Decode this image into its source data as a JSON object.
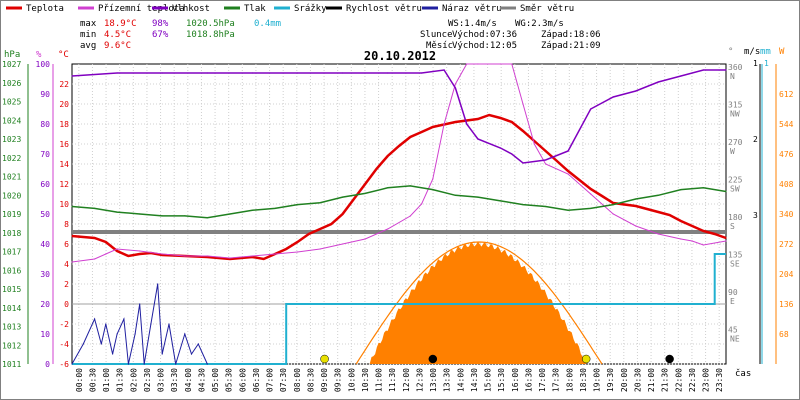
{
  "chart_data": {
    "type": "line",
    "title": "20.10.2012",
    "x_unit": "čas",
    "x_ticks": [
      "00:00",
      "00:30",
      "01:00",
      "01:30",
      "02:00",
      "02:30",
      "03:00",
      "03:30",
      "04:00",
      "04:30",
      "05:00",
      "05:30",
      "06:00",
      "06:30",
      "07:00",
      "07:30",
      "08:00",
      "08:30",
      "09:00",
      "09:30",
      "10:00",
      "10:30",
      "11:00",
      "11:30",
      "12:00",
      "12:30",
      "13:00",
      "13:30",
      "14:00",
      "14:30",
      "15:00",
      "15:30",
      "16:00",
      "16:30",
      "17:00",
      "17:30",
      "18:00",
      "18:30",
      "19:00",
      "19:30",
      "20:00",
      "20:30",
      "21:00",
      "21:30",
      "22:00",
      "22:30",
      "23:00",
      "23:30"
    ],
    "legend": [
      {
        "name": "Teplota",
        "color": "#e00000"
      },
      {
        "name": "Přízemní teplota",
        "color": "#d040d0"
      },
      {
        "name": "Vlhkost",
        "color": "#8000c0"
      },
      {
        "name": "Tlak",
        "color": "#208020"
      },
      {
        "name": "Srážky",
        "color": "#20b0d0"
      },
      {
        "name": "Rychlost větru",
        "color": "#000000"
      },
      {
        "name": "Náraz větru",
        "color": "#2020a0"
      },
      {
        "name": "Směr větru",
        "color": "#808080"
      }
    ],
    "stats": {
      "max": {
        "label": "max",
        "temp": "18.9°C",
        "hum": "98%",
        "press": "1020.5hPa",
        "rain": "0.4mm"
      },
      "min": {
        "label": "min",
        "temp": "4.5°C",
        "hum": "67%",
        "press": "1018.8hPa"
      },
      "avg": {
        "label": "avg",
        "temp": "9.6°C"
      }
    },
    "wind_info": {
      "ws": "WS:1.4m/s",
      "wg": "WG:2.3m/s"
    },
    "sun_info": {
      "label": "Slunce",
      "rise": "Východ:07:36",
      "set": "Západ:18:06"
    },
    "moon_info": {
      "label": "Měsíc",
      "rise": "Východ:12:05",
      "set": "Západ:21:09"
    },
    "axes": {
      "hpa": {
        "unit": "hPa",
        "range": [
          1011,
          1027
        ],
        "ticks": [
          "1027",
          "1026",
          "1025",
          "1024",
          "1023",
          "1022",
          "1021",
          "1020",
          "1019",
          "1018",
          "1017",
          "1016",
          "1015",
          "1014",
          "1013",
          "1012",
          "1011"
        ]
      },
      "pct": {
        "unit": "%",
        "range": [
          0,
          100
        ],
        "ticks": [
          "100",
          "90",
          "80",
          "70",
          "60",
          "50",
          "40",
          "30",
          "20",
          "10",
          "0"
        ]
      },
      "temp": {
        "unit": "°C",
        "range": [
          -6,
          24
        ],
        "ticks": [
          "22",
          "20",
          "18",
          "16",
          "14",
          "12",
          "10",
          "8",
          "6",
          "4",
          "2",
          "0",
          "-2",
          "-4",
          "-6"
        ]
      },
      "dir": {
        "unit": "°",
        "ticks": [
          {
            "deg": "360",
            "dir": "N"
          },
          {
            "deg": "315",
            "dir": "NW"
          },
          {
            "deg": "270",
            "dir": "W"
          },
          {
            "deg": "225",
            "dir": "SW"
          },
          {
            "deg": "180",
            "dir": "S"
          },
          {
            "deg": "135",
            "dir": "SE"
          },
          {
            "deg": "90",
            "dir": "E"
          },
          {
            "deg": "45",
            "dir": "NE"
          }
        ]
      },
      "ms": {
        "unit": "m/s",
        "ticks": [
          "3",
          "2",
          "1"
        ]
      },
      "mm": {
        "unit": "mm",
        "ticks": [
          "1"
        ]
      },
      "solar": {
        "unit": "W",
        "range": [
          0,
          680
        ],
        "ticks": [
          "612",
          "544",
          "476",
          "408",
          "340",
          "272",
          "204",
          "136",
          "68"
        ]
      }
    },
    "series": [
      {
        "key": "teplota",
        "axis": "temp",
        "values": [
          [
            0,
            6.8
          ],
          [
            1,
            6.6
          ],
          [
            1.5,
            6.2
          ],
          [
            2,
            5.3
          ],
          [
            2.5,
            4.8
          ],
          [
            3,
            5.0
          ],
          [
            3.5,
            5.1
          ],
          [
            4,
            4.9
          ],
          [
            5,
            4.8
          ],
          [
            6,
            4.7
          ],
          [
            7,
            4.5
          ],
          [
            8,
            4.7
          ],
          [
            8.5,
            4.5
          ],
          [
            9,
            5.0
          ],
          [
            9.5,
            5.5
          ],
          [
            10,
            6.2
          ],
          [
            10.5,
            7.0
          ],
          [
            11,
            7.5
          ],
          [
            11.5,
            8.0
          ],
          [
            12,
            9.0
          ],
          [
            12.5,
            10.5
          ],
          [
            13,
            12.0
          ],
          [
            13.5,
            13.5
          ],
          [
            14,
            14.8
          ],
          [
            14.5,
            15.8
          ],
          [
            15,
            16.7
          ],
          [
            15.5,
            17.2
          ],
          [
            16,
            17.7
          ],
          [
            17,
            18.2
          ],
          [
            18,
            18.5
          ],
          [
            18.5,
            18.9
          ],
          [
            19,
            18.6
          ],
          [
            19.5,
            18.2
          ],
          [
            20,
            17.3
          ],
          [
            20.5,
            16.3
          ],
          [
            21,
            15.3
          ],
          [
            21.5,
            14.3
          ],
          [
            22,
            13.3
          ],
          [
            22.5,
            12.4
          ],
          [
            23,
            11.5
          ],
          [
            23.5,
            10.8
          ],
          [
            24,
            10.1
          ],
          [
            25,
            9.8
          ],
          [
            26,
            9.2
          ],
          [
            26.5,
            8.9
          ],
          [
            27,
            8.3
          ],
          [
            27.5,
            7.8
          ],
          [
            28,
            7.3
          ],
          [
            28.5,
            7.0
          ],
          [
            29,
            6.6
          ]
        ]
      },
      {
        "key": "prizemni",
        "axis": "temp",
        "values": [
          [
            0,
            4.2
          ],
          [
            1,
            4.5
          ],
          [
            1.5,
            5.0
          ],
          [
            2,
            5.5
          ],
          [
            3,
            5.3
          ],
          [
            4,
            5.0
          ],
          [
            5,
            4.8
          ],
          [
            6,
            4.8
          ],
          [
            7,
            4.6
          ],
          [
            8,
            4.8
          ],
          [
            9,
            5.0
          ],
          [
            10,
            5.2
          ],
          [
            11,
            5.5
          ],
          [
            12,
            6.0
          ],
          [
            13,
            6.5
          ],
          [
            14,
            7.5
          ],
          [
            15,
            8.8
          ],
          [
            15.5,
            10.0
          ],
          [
            16,
            12.5
          ],
          [
            16.5,
            18.0
          ],
          [
            17,
            22.0
          ],
          [
            17.5,
            24.0
          ],
          [
            18,
            24.0
          ],
          [
            19,
            24.0
          ],
          [
            19.5,
            24.0
          ],
          [
            20,
            20.0
          ],
          [
            20.5,
            16.0
          ],
          [
            21,
            14.0
          ],
          [
            22,
            13.0
          ],
          [
            23,
            11.0
          ],
          [
            24,
            9.0
          ],
          [
            25,
            7.8
          ],
          [
            26,
            7.0
          ],
          [
            27,
            6.5
          ],
          [
            27.5,
            6.3
          ],
          [
            28,
            5.9
          ],
          [
            29,
            6.3
          ]
        ]
      },
      {
        "key": "vlhkost",
        "axis": "pct",
        "values": [
          [
            0,
            96
          ],
          [
            2,
            97
          ],
          [
            4,
            97
          ],
          [
            6,
            97
          ],
          [
            8,
            97
          ],
          [
            10,
            97
          ],
          [
            12,
            97
          ],
          [
            14,
            97
          ],
          [
            15.5,
            97
          ],
          [
            16.5,
            98
          ],
          [
            17,
            92
          ],
          [
            17.5,
            80
          ],
          [
            18,
            75
          ],
          [
            19,
            72
          ],
          [
            19.5,
            70
          ],
          [
            20,
            67
          ],
          [
            21,
            68
          ],
          [
            22,
            71
          ],
          [
            22.5,
            78
          ],
          [
            23,
            85
          ],
          [
            24,
            89
          ],
          [
            25,
            91
          ],
          [
            26,
            94
          ],
          [
            27,
            96
          ],
          [
            28,
            98
          ],
          [
            29,
            98
          ]
        ]
      },
      {
        "key": "tlak",
        "axis": "hpa",
        "values": [
          [
            0,
            1019.4
          ],
          [
            1,
            1019.3
          ],
          [
            2,
            1019.1
          ],
          [
            3,
            1019.0
          ],
          [
            4,
            1018.9
          ],
          [
            5,
            1018.9
          ],
          [
            6,
            1018.8
          ],
          [
            7,
            1019.0
          ],
          [
            8,
            1019.2
          ],
          [
            9,
            1019.3
          ],
          [
            10,
            1019.5
          ],
          [
            11,
            1019.6
          ],
          [
            12,
            1019.9
          ],
          [
            13,
            1020.1
          ],
          [
            14,
            1020.4
          ],
          [
            15,
            1020.5
          ],
          [
            16,
            1020.3
          ],
          [
            17,
            1020.0
          ],
          [
            18,
            1019.9
          ],
          [
            19,
            1019.7
          ],
          [
            20,
            1019.5
          ],
          [
            21,
            1019.4
          ],
          [
            22,
            1019.2
          ],
          [
            23,
            1019.3
          ],
          [
            24,
            1019.5
          ],
          [
            25,
            1019.8
          ],
          [
            26,
            1020.0
          ],
          [
            27,
            1020.3
          ],
          [
            28,
            1020.4
          ],
          [
            29,
            1020.2
          ]
        ]
      },
      {
        "key": "nraz",
        "axis": "temp",
        "values": [
          [
            0,
            -6
          ],
          [
            0.5,
            -4
          ],
          [
            1,
            -1.5
          ],
          [
            1.3,
            -4
          ],
          [
            1.5,
            -2
          ],
          [
            1.8,
            -5
          ],
          [
            2,
            -3
          ],
          [
            2.3,
            -1.5
          ],
          [
            2.5,
            -6
          ],
          [
            2.8,
            -3
          ],
          [
            3,
            0
          ],
          [
            3.2,
            -6
          ],
          [
            3.5,
            -2
          ],
          [
            3.8,
            2.0
          ],
          [
            4.0,
            -5
          ],
          [
            4.3,
            -2
          ],
          [
            4.6,
            -6
          ],
          [
            5,
            -3
          ],
          [
            5.3,
            -5
          ],
          [
            5.6,
            -4
          ],
          [
            6,
            -6
          ]
        ]
      }
    ],
    "srazky_step_values": [
      [
        0,
        -6
      ],
      [
        9.5,
        -6
      ],
      [
        9.5,
        0
      ],
      [
        28.5,
        0
      ],
      [
        28.5,
        5.0
      ],
      [
        29,
        5.0
      ]
    ],
    "smer_line_temp": 7.2,
    "sun_arc": {
      "start": 12.6,
      "end": 23.5,
      "peak_temp": 6.2
    },
    "solar_profile": {
      "start": 13.2,
      "end": 22.8,
      "peak_temp": 6.0
    },
    "markers": [
      {
        "x": 11.2,
        "kind": "sun",
        "color": "#e8e000"
      },
      {
        "x": 16.0,
        "kind": "moon",
        "color": "#000000"
      },
      {
        "x": 22.8,
        "kind": "sun",
        "color": "#e8e000"
      },
      {
        "x": 26.5,
        "kind": "moon",
        "color": "#000000"
      }
    ],
    "solar_line_color": "#ff8000",
    "solar_fill_color": "#ff8000"
  }
}
